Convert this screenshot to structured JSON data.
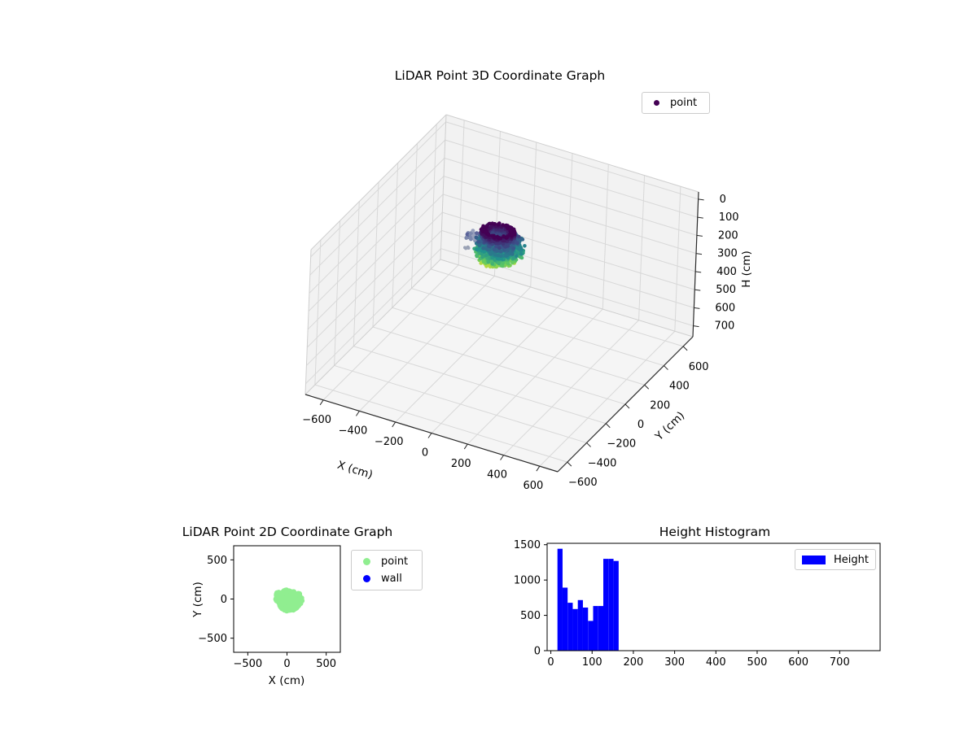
{
  "figure": {
    "background": "#ffffff"
  },
  "colors": {
    "viridis_stops": [
      [
        0.0,
        "#440154"
      ],
      [
        0.25,
        "#3b528b"
      ],
      [
        0.5,
        "#21918c"
      ],
      [
        0.75,
        "#5ec962"
      ],
      [
        1.0,
        "#fde725"
      ]
    ],
    "pane": "#f2f2f2",
    "pane_floor": "#f5f5f5",
    "grid": "#d8d8d8",
    "pane_edge": "#cfcfcf",
    "spine": "#2a2a2a",
    "side_cluster_colors": [
      "#7c88ad",
      "#5b6399",
      "#9aa2bd",
      "#8d97b6"
    ]
  },
  "chart_data": [
    {
      "type": "scatter3d",
      "title": "LiDAR Point 3D Coordinate Graph",
      "xlabel": "X (cm)",
      "ylabel": "Y (cm)",
      "zlabel": "H (cm)",
      "xticks": [
        -600,
        -400,
        -200,
        0,
        200,
        400,
        600
      ],
      "yticks": [
        -600,
        -400,
        -200,
        0,
        200,
        400,
        600
      ],
      "zticks": [
        0,
        100,
        200,
        300,
        400,
        500,
        600,
        700
      ],
      "xlim": [
        -700,
        700
      ],
      "ylim": [
        -700,
        700
      ],
      "zlim": [
        -40,
        760
      ],
      "zaxis_inverted": true,
      "legend": [
        {
          "label": "point",
          "color": "#440154"
        }
      ],
      "colormap": "viridis",
      "cloud": {
        "center_x": -30,
        "center_y": -20,
        "h_min": 15,
        "h_max": 165,
        "ring_h_max": 50,
        "ring_inner_r": 48,
        "ring_outer_r": 80,
        "body_r": 95,
        "side_cluster": {
          "x": -150,
          "y": -35,
          "h_min": 55,
          "h_max": 95,
          "r": 38
        },
        "stray": {
          "x": -165,
          "y": -75,
          "h": 120
        }
      }
    },
    {
      "type": "scatter",
      "title": "LiDAR Point 2D Coordinate Graph",
      "xlabel": "X (cm)",
      "ylabel": "Y (cm)",
      "xticks": [
        -500,
        0,
        500
      ],
      "yticks": [
        -500,
        0,
        500
      ],
      "xlim": [
        -680,
        680
      ],
      "ylim": [
        -680,
        680
      ],
      "legend": [
        {
          "label": "point",
          "color": "#90ee90"
        },
        {
          "label": "wall",
          "color": "#0000ff"
        }
      ],
      "cloud": {
        "center_x": 5,
        "center_y": -25,
        "radius": 150
      }
    },
    {
      "type": "histogram",
      "title": "Height Histogram",
      "legend": [
        {
          "label": "Height",
          "color": "#0000ff"
        }
      ],
      "bar_color": "#0000ff",
      "bin_start": 16,
      "bin_width": 12.36,
      "values": [
        1443,
        893,
        678,
        590,
        716,
        610,
        421,
        632,
        632,
        1300,
        1300,
        1270
      ],
      "xticks": [
        0,
        100,
        200,
        300,
        400,
        500,
        600,
        700
      ],
      "yticks": [
        0,
        500,
        1000,
        1500
      ],
      "xlim": [
        -9,
        798
      ],
      "ylim": [
        0,
        1520
      ]
    }
  ]
}
